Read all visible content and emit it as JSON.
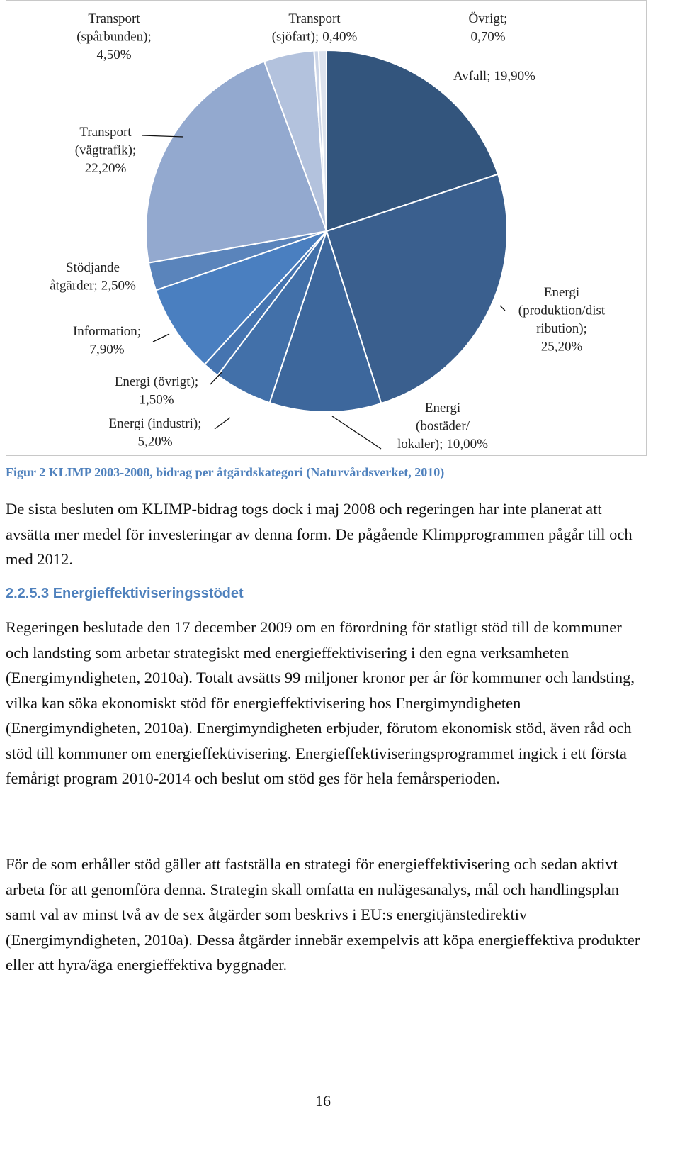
{
  "chart_data": {
    "type": "pie",
    "categories": [
      "Avfall;",
      "Energi\n(produktion/dist\nribution);",
      "Energi\n(bostäder/\nlokaler);",
      "Energi (industri);",
      "Energi (övrigt);",
      "Information;",
      "Stödjande\nåtgärder;",
      "Transport\n(vägtrafik);",
      "Transport\n(spårbunden);",
      "Transport\n(sjöfart);",
      "Övrigt;"
    ],
    "values": [
      19.9,
      25.2,
      10.0,
      5.2,
      1.5,
      7.9,
      2.5,
      22.2,
      4.5,
      0.4,
      0.7
    ],
    "value_labels": [
      "19,90%",
      "25,20%",
      "10,00%",
      "5,20%",
      "1,50%",
      "7,90%",
      "2,50%",
      "22,20%",
      "4,50%",
      "0,40%",
      "0,70%"
    ],
    "colors": [
      "#33557d",
      "#3a5f8e",
      "#3d679c",
      "#4270a9",
      "#4574b0",
      "#4a7fc0",
      "#5a84bb",
      "#93a9cf",
      "#b3c2dd",
      "#ccd5e7",
      "#dde3ee"
    ]
  },
  "document": {
    "caption": "Figur 2 KLIMP 2003-2008, bidrag per åtgärdskategori (Naturvårdsverket, 2010)",
    "paragraph_1": "De sista besluten om KLIMP-bidrag togs dock i maj 2008 och regeringen har inte planerat att avsätta mer medel för investeringar av denna form. De pågående Klimpprogrammen pågår till och med 2012.",
    "heading": "2.2.5.3 Energieffektiviseringsstödet",
    "paragraphs": [
      "Regeringen beslutade den 17 december 2009 om en förordning för statligt stöd till de kommuner och landsting som arbetar strategiskt med energieffektivisering i den egna verksamheten (Energimyndigheten, 2010a). Totalt avsätts 99 miljoner kronor per år för kommuner och landsting, vilka kan söka ekonomiskt stöd för energieffektivisering hos Energimyndigheten (Energimyndigheten, 2010a). Energimyndigheten erbjuder, förutom ekonomisk stöd, även råd och stöd till kommuner om energieffektivisering. Energieffektiviseringsprogrammet ingick i ett första femårigt program 2010-2014 och beslut om stöd ges för hela femårsperioden.",
      "För de som erhåller stöd gäller att fastställa en strategi för energieffektivisering och sedan aktivt arbeta för att genomföra denna. Strategin skall omfatta en nulägesanalys, mål och handlingsplan samt val av minst två av de sex åtgärder som beskrivs i EU:s energitjänstedirektiv (Energimyndigheten, 2010a). Dessa åtgärder innebär exempelvis att köpa energieffektiva produkter eller att hyra/äga energieffektiva byggnader."
    ],
    "page_number": "16"
  }
}
